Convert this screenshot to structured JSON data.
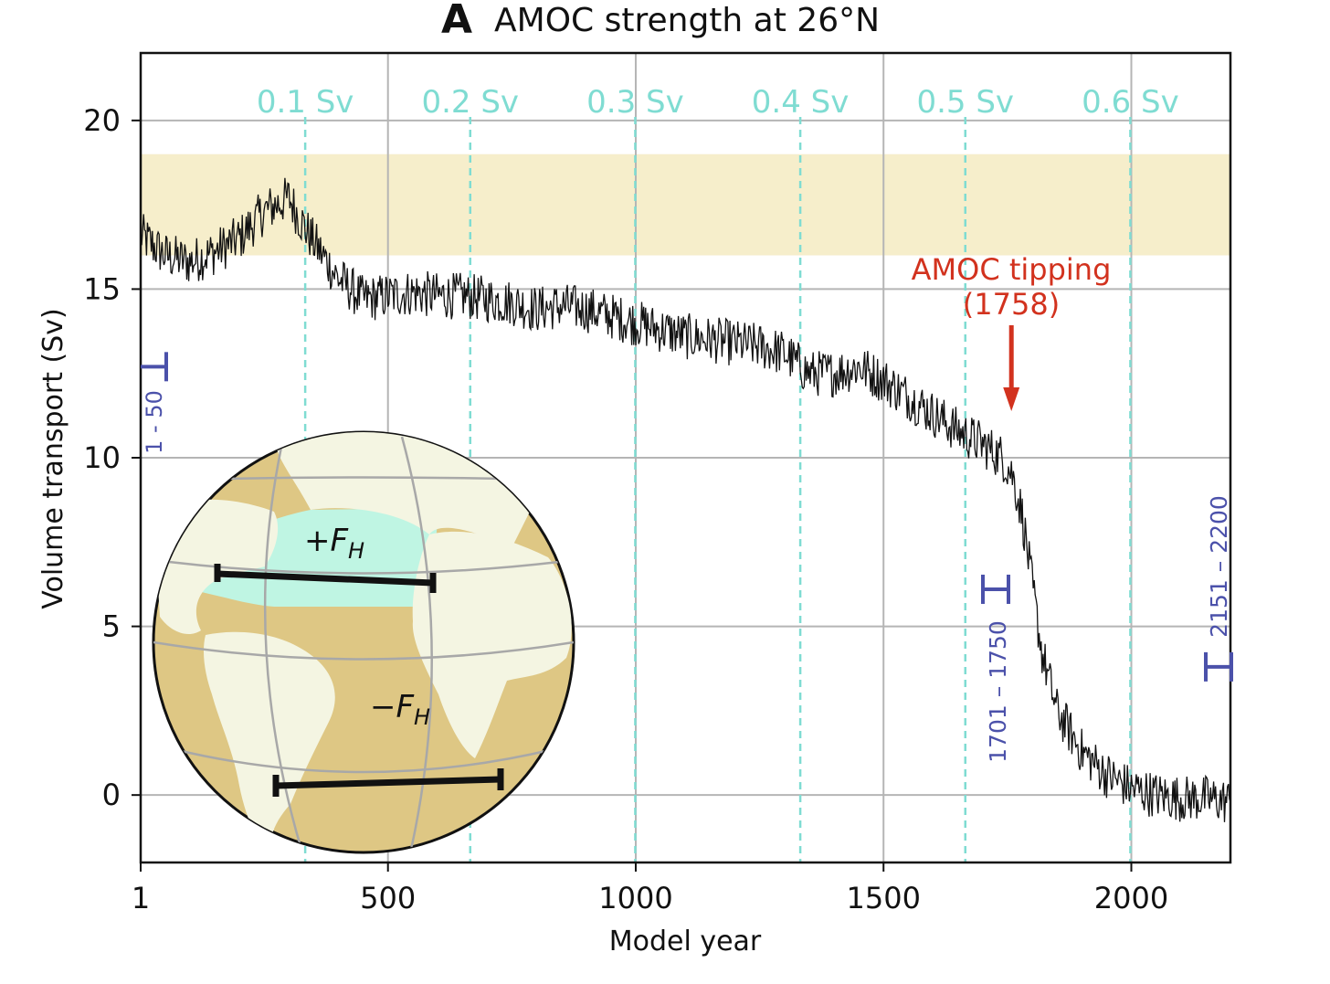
{
  "panel_letter": "A",
  "chart_data": {
    "type": "line",
    "title": "AMOC strength at 26°N",
    "xlabel": "Model year",
    "ylabel": "Volume transport (Sv)",
    "xlim": [
      1,
      2200
    ],
    "ylim": [
      -2,
      22
    ],
    "grid": true,
    "x_ticks": [
      1,
      500,
      1000,
      1500,
      2000
    ],
    "x_tick_labels": [
      "1",
      "500",
      "1000",
      "1500",
      "2000"
    ],
    "y_ticks": [
      0,
      5,
      10,
      15,
      20
    ],
    "y_tick_labels": [
      "0",
      "5",
      "10",
      "15",
      "20"
    ],
    "observed_range_band": {
      "y_from": 16,
      "y_to": 19,
      "color": "#f6eecb"
    },
    "forcing_markers": [
      {
        "x": 333,
        "label": "0.1 Sv"
      },
      {
        "x": 666,
        "label": "0.2 Sv"
      },
      {
        "x": 999,
        "label": "0.3 Sv"
      },
      {
        "x": 1332,
        "label": "0.4 Sv"
      },
      {
        "x": 1665,
        "label": "0.5 Sv"
      },
      {
        "x": 1998,
        "label": "0.6 Sv"
      }
    ],
    "forcing_color": "#7fdcd2",
    "series": [
      {
        "color": "#111111",
        "x": [
          1,
          50,
          100,
          150,
          200,
          250,
          300,
          333,
          350,
          400,
          450,
          500,
          550,
          600,
          650,
          700,
          750,
          800,
          850,
          900,
          950,
          1000,
          1050,
          1100,
          1150,
          1200,
          1250,
          1300,
          1350,
          1400,
          1450,
          1500,
          1550,
          1600,
          1650,
          1700,
          1740,
          1760,
          1780,
          1800,
          1820,
          1850,
          1900,
          1950,
          2000,
          2050,
          2100,
          2150,
          2200
        ],
        "values": [
          16.6,
          16.0,
          15.8,
          16.1,
          16.5,
          17.3,
          17.7,
          16.8,
          16.4,
          15.3,
          14.7,
          14.8,
          14.9,
          14.8,
          14.8,
          14.7,
          14.6,
          14.4,
          14.5,
          14.4,
          14.2,
          14.0,
          13.8,
          13.6,
          13.5,
          13.4,
          13.3,
          13.1,
          12.5,
          12.5,
          12.7,
          12.3,
          11.8,
          11.3,
          10.8,
          10.4,
          10.0,
          9.5,
          8.3,
          6.2,
          4.2,
          2.5,
          1.3,
          0.6,
          0.2,
          0.0,
          -0.1,
          -0.1,
          -0.2
        ]
      }
    ],
    "averaging_windows": [
      {
        "label": "1 - 50",
        "x": 50,
        "y": 12.7
      },
      {
        "label": "1701 – 1750",
        "x": 1720,
        "y": 6.1
      },
      {
        "label": "2151 – 2200",
        "x": 2180,
        "y": 3.8
      }
    ],
    "window_color": "#4b51aa",
    "annotation": {
      "line1": "AMOC tipping",
      "line2": "(1758)",
      "x": 1758,
      "arrow_from_y": 14.0,
      "arrow_to_y": 11.0,
      "color": "#d2321e"
    },
    "inset_globe": {
      "north_label": "+F",
      "north_sub": "H",
      "south_label": "−F",
      "south_sub": "H",
      "ocean_color": "#dec784",
      "land_color": "#f4f5e2",
      "north_atlantic_color": "#bff5e3"
    }
  }
}
